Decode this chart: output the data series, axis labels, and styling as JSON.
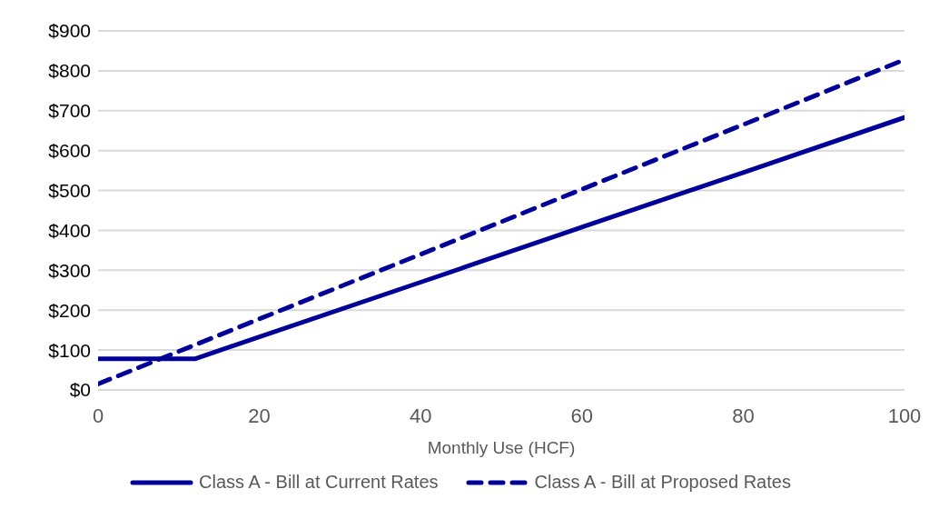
{
  "chart_data": {
    "type": "line",
    "xlabel": "Monthly Use (HCF)",
    "series": [
      {
        "name": "Class A - Bill at Current Rates",
        "color": "#000099",
        "line_style": "solid",
        "x": [
          0,
          12,
          20,
          40,
          60,
          80,
          100
        ],
        "values": [
          78,
          78,
          133,
          270,
          408,
          545,
          683
        ]
      },
      {
        "name": "Class A - Bill at Proposed Rates",
        "color": "#000099",
        "line_style": "dashed",
        "x": [
          0,
          20,
          40,
          60,
          80,
          100
        ],
        "values": [
          15,
          178,
          340,
          503,
          665,
          828
        ]
      }
    ],
    "xlim": [
      0,
      100
    ],
    "xticks": [
      0,
      20,
      40,
      60,
      80,
      100
    ],
    "ylim": [
      0,
      900
    ],
    "yticks": [
      {
        "value": 0,
        "label": "$0"
      },
      {
        "value": 100,
        "label": "$100"
      },
      {
        "value": 200,
        "label": "$200"
      },
      {
        "value": 300,
        "label": "$300"
      },
      {
        "value": 400,
        "label": "$400"
      },
      {
        "value": 500,
        "label": "$500"
      },
      {
        "value": 600,
        "label": "$600"
      },
      {
        "value": 700,
        "label": "$700"
      },
      {
        "value": 800,
        "label": "$800"
      },
      {
        "value": 900,
        "label": "$900"
      }
    ],
    "grid": "y",
    "legend": "bottom",
    "marker": "none"
  }
}
